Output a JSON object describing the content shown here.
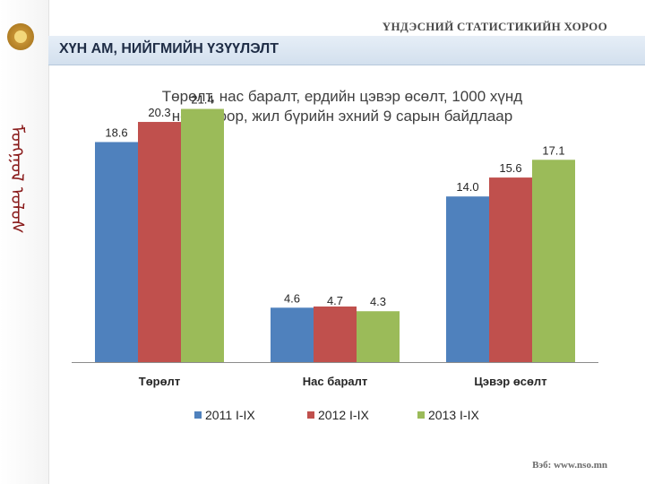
{
  "org": "ҮНДЭСНИЙ СТАТИСТИКИЙН ХОРОО",
  "section_title": "ХҮН АМ, НИЙГМИЙН ҮЗҮҮЛЭЛТ",
  "sidebar_script": "ᠮᠤᠩᠭᠤᠯ ᠤᠯᠤᠰ",
  "footer": "Вэб: www.nso.mn",
  "colors": {
    "s2011": "#4f81bd",
    "s2012": "#c0504d",
    "s2013": "#9bbb59"
  },
  "chart_data": {
    "type": "bar",
    "title_lines": [
      "Төрөлт, нас баралт, ердийн цэвэр өсөлт, 1000 хүнд",
      "ногдохоор, жил бүрийн эхний 9 сарын байдлаар"
    ],
    "categories": [
      "Төрөлт",
      "Нас баралт",
      "Цэвэр өсөлт"
    ],
    "series": [
      {
        "name": "2011 I-IX",
        "color": "#4f81bd",
        "values": [
          18.6,
          4.6,
          14.0
        ],
        "labels": [
          "18.6",
          "4.6",
          "14.0"
        ]
      },
      {
        "name": "2012 I-IX",
        "color": "#c0504d",
        "values": [
          20.3,
          4.7,
          15.6
        ],
        "labels": [
          "20.3",
          "4.7",
          "15.6"
        ]
      },
      {
        "name": "2013 I-IX",
        "color": "#9bbb59",
        "values": [
          21.4,
          4.3,
          17.1
        ],
        "labels": [
          "21.4",
          "4.3",
          "17.1"
        ]
      }
    ],
    "ylim": [
      0,
      25
    ],
    "grid": false,
    "legend": "bottom"
  }
}
